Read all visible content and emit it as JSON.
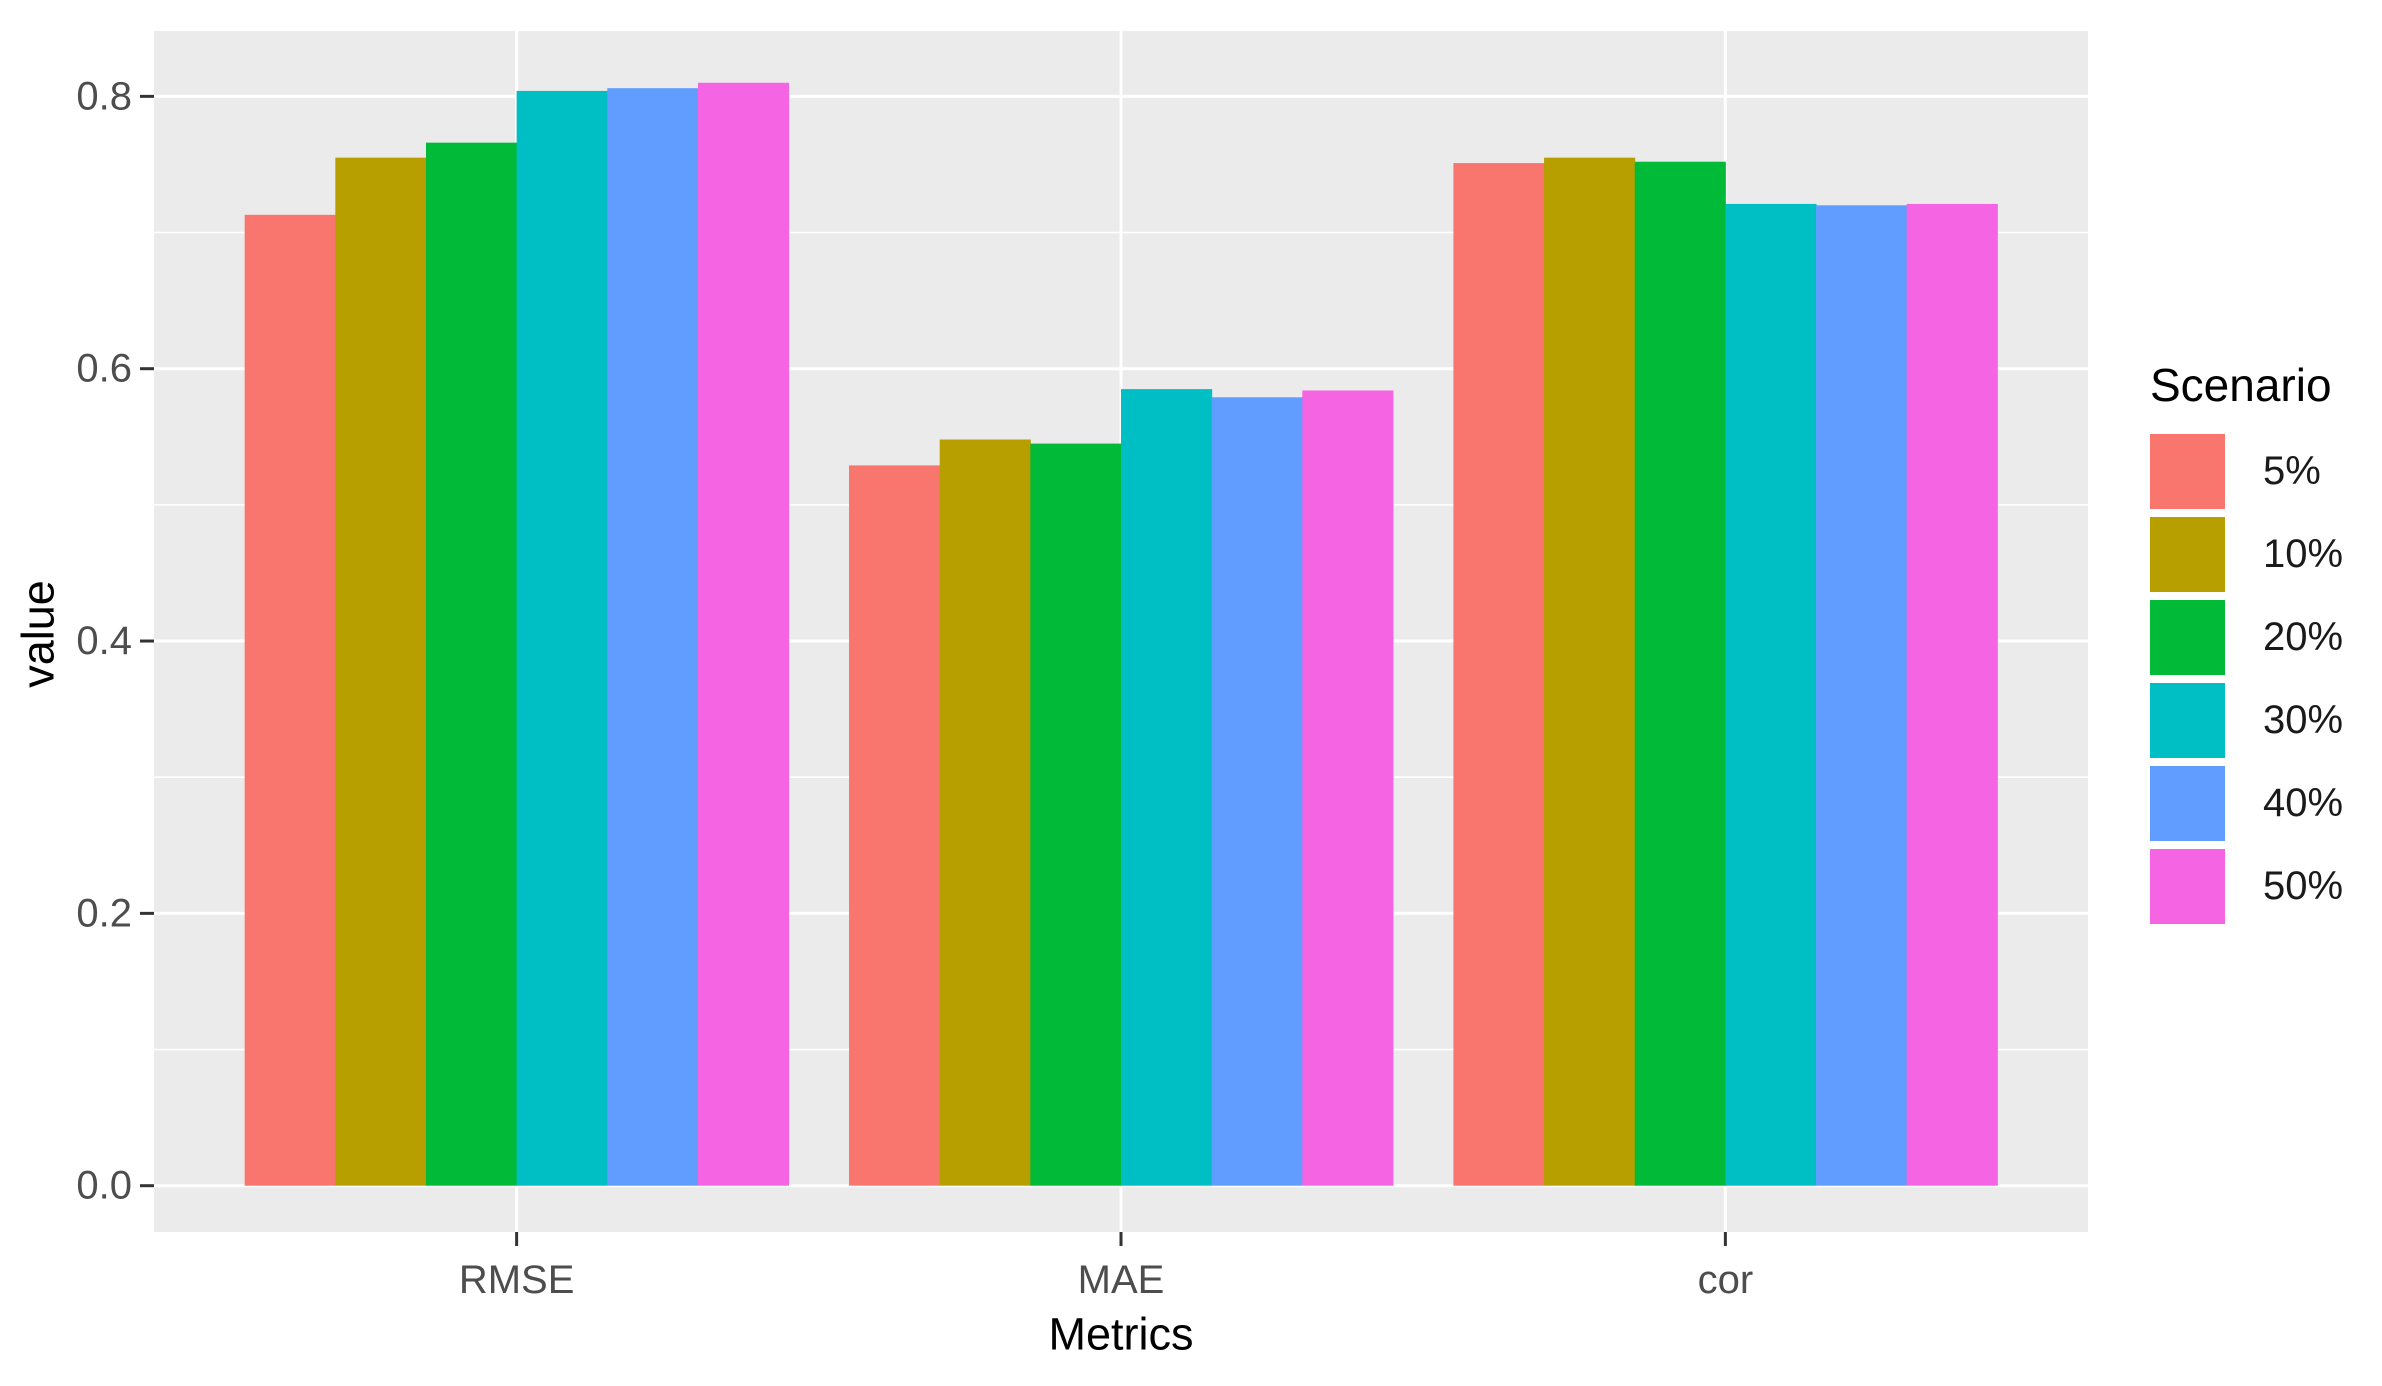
{
  "chart_data": {
    "type": "bar",
    "title": "",
    "xlabel": "Metrics",
    "ylabel": "value",
    "categories": [
      "RMSE",
      "MAE",
      "cor"
    ],
    "series": [
      {
        "name": "5%",
        "color": "#F8766D",
        "values": [
          0.713,
          0.529,
          0.751
        ]
      },
      {
        "name": "10%",
        "color": "#B79F00",
        "values": [
          0.755,
          0.548,
          0.755
        ]
      },
      {
        "name": "20%",
        "color": "#00BA38",
        "values": [
          0.766,
          0.545,
          0.752
        ]
      },
      {
        "name": "30%",
        "color": "#00BFC4",
        "values": [
          0.804,
          0.585,
          0.721
        ]
      },
      {
        "name": "40%",
        "color": "#619CFF",
        "values": [
          0.806,
          0.579,
          0.72
        ]
      },
      {
        "name": "50%",
        "color": "#F564E3",
        "values": [
          0.81,
          0.584,
          0.721
        ]
      }
    ],
    "yticks": [
      0.0,
      0.2,
      0.4,
      0.6,
      0.8
    ],
    "ytick_labels": [
      "0.0",
      "0.2",
      "0.4",
      "0.6",
      "0.8"
    ],
    "minor_yticks": [
      0.1,
      0.3,
      0.5,
      0.7
    ],
    "ylim": [
      0,
      0.85
    ],
    "grid": true,
    "legend": {
      "title": "Scenario",
      "position": "right"
    },
    "colors": {
      "panel_bg": "#EBEBEB",
      "grid": "#FFFFFF",
      "tick_mark": "#333333",
      "tick_text": "#4D4D4D",
      "axis_title_text": "#000000"
    }
  }
}
